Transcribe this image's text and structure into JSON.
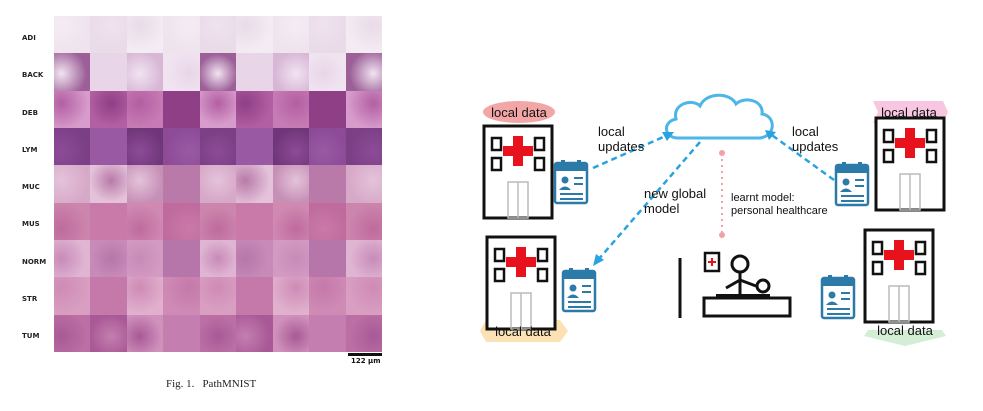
{
  "left_figure": {
    "row_labels": [
      "ADI",
      "BACK",
      "DEB",
      "LYM",
      "MUC",
      "MUS",
      "NORM",
      "STR",
      "TUM"
    ],
    "scale_bar_label": "122 μm",
    "caption_prefix": "Fig. 1.",
    "caption_title": "PathMNIST"
  },
  "right_figure": {
    "hospitals": [
      {
        "local_data_label": "local data",
        "badge_color": "#f2a6a6"
      },
      {
        "local_data_label": "local data",
        "badge_color": "#f8c6e0"
      },
      {
        "local_data_label": "local data",
        "badge_color": "#fbe1b3"
      },
      {
        "local_data_label": "local data",
        "badge_color": "#d4edd5"
      }
    ],
    "arrow_labels": {
      "left_updates": "local\nupdates",
      "right_updates": "local\nupdates",
      "global_model": "new global\nmodel",
      "learnt_model": "learnt model:\npersonal healthcare"
    },
    "colors": {
      "cloud": "#4db6e8",
      "arrow": "#29a3e0",
      "learnt_model_line": "#f3a0a8",
      "cross": "#e8121c",
      "clipboard": "#2b7aa8"
    }
  }
}
